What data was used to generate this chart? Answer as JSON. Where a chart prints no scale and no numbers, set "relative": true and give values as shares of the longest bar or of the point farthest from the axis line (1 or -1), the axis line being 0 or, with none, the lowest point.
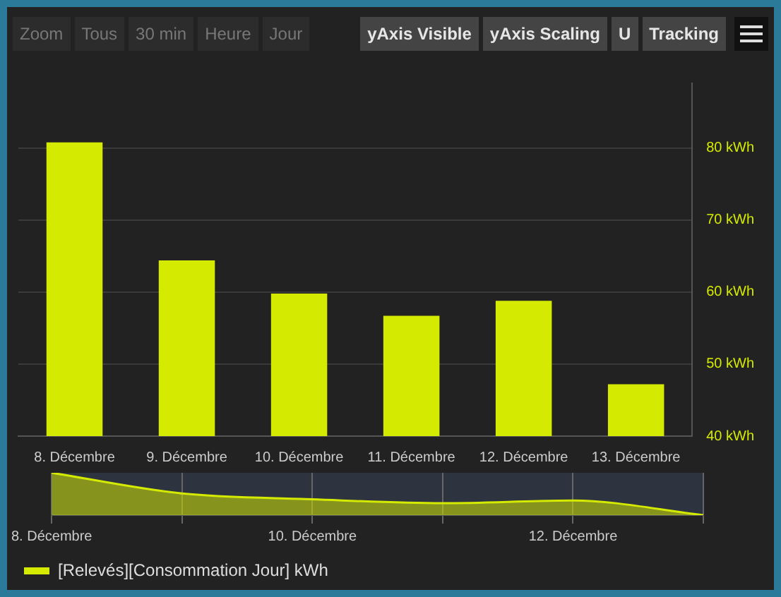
{
  "chart_data": [
    {
      "type": "bar",
      "annotations": [
        "Zoom",
        "Tous",
        "30 min",
        "Heure",
        "Jour",
        "yAxis Visible",
        "yAxis Scaling",
        "U",
        "Tracking"
      ],
      "categories": [
        "8. Décembre",
        "9. Décembre",
        "10. Décembre",
        "11. Décembre",
        "12. Décembre",
        "13. Décembre"
      ],
      "series": [
        {
          "name": "[Relevés][Consommation Jour] kWh",
          "color": "#d4ea00",
          "values": [
            80.8,
            64.4,
            59.8,
            56.7,
            58.8,
            47.2
          ]
        }
      ],
      "ylim": [
        40,
        89
      ],
      "yticks": [
        {
          "value": 40,
          "label": "40 kWh"
        },
        {
          "value": 50,
          "label": "50 kWh"
        },
        {
          "value": 60,
          "label": "60 kWh"
        },
        {
          "value": 70,
          "label": "70 kWh"
        },
        {
          "value": 80,
          "label": "80 kWh"
        }
      ],
      "grid": "y",
      "legend": "bottom"
    },
    {
      "type": "area",
      "relative": true,
      "categories": [
        "8. Décembre",
        null,
        "10. Décembre",
        null,
        "12. Décembre",
        null
      ],
      "series": [
        {
          "color": "#d4ea00",
          "values": [
            1,
            0.512,
            0.375,
            0.283,
            0.345,
            0
          ]
        }
      ],
      "grid": "x"
    }
  ]
}
